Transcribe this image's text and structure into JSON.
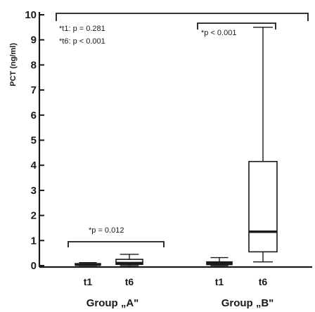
{
  "chart_data": {
    "type": "box",
    "title": "",
    "xlabel": "",
    "ylabel": "PCT (ng/ml)",
    "ylim": [
      0,
      10
    ],
    "yticks": [
      "0",
      "1",
      "2",
      "3",
      "4",
      "5",
      "6",
      "7",
      "8",
      "9",
      "10"
    ],
    "groups": [
      {
        "label": "Group „A\"",
        "categories": [
          "t1",
          "t6"
        ]
      },
      {
        "label": "Group „B\"",
        "categories": [
          "t1",
          "t6"
        ]
      }
    ],
    "boxes": [
      {
        "group": "Group „A\"",
        "category": "t1",
        "min": 0.0,
        "q1": 0.02,
        "median": 0.04,
        "q3": 0.08,
        "max": 0.12
      },
      {
        "group": "Group „A\"",
        "category": "t6",
        "min": 0.0,
        "q1": 0.05,
        "median": 0.1,
        "q3": 0.25,
        "max": 0.45
      },
      {
        "group": "Group „B\"",
        "category": "t1",
        "min": 0.0,
        "q1": 0.04,
        "median": 0.1,
        "q3": 0.15,
        "max": 0.32
      },
      {
        "group": "Group „B\"",
        "category": "t6",
        "min": 0.15,
        "q1": 0.55,
        "median": 1.35,
        "q3": 4.15,
        "max": 9.5
      }
    ],
    "annotations": {
      "top_left": [
        "*t1: p = 0.281",
        "*t6: p < 0.001"
      ],
      "group_a": "*p = 0.012",
      "group_b": "*p < 0.001"
    }
  }
}
